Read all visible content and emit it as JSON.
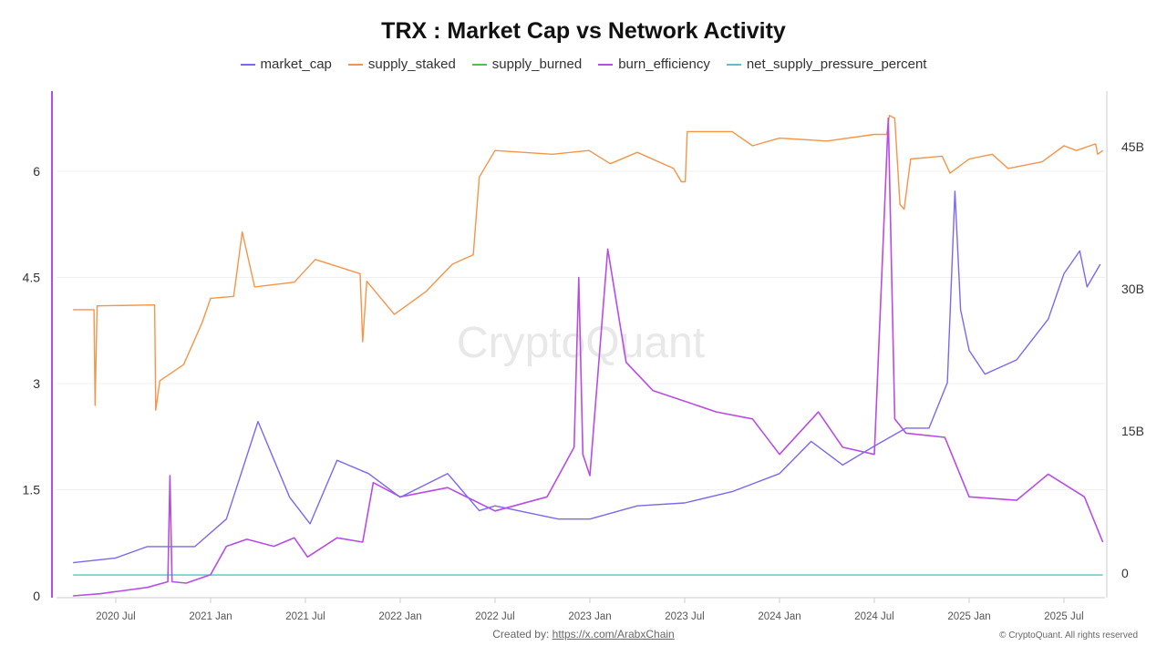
{
  "chart_data": {
    "type": "line",
    "title": "TRX : Market Cap vs Network Activity",
    "legend_position": "top",
    "grid": true,
    "x_ticks": [
      "2020 Jul",
      "2021 Jan",
      "2021 Jul",
      "2022 Jan",
      "2022 Jul",
      "2023 Jan",
      "2023 Jul",
      "2024 Jan",
      "2024 Jul",
      "2025 Jan",
      "2025 Jul"
    ],
    "left_axis": {
      "ticks": [
        "0",
        "1.5",
        "3",
        "4.5",
        "6"
      ],
      "ylim": [
        0,
        7
      ]
    },
    "right_axis": {
      "ticks": [
        "0",
        "15B",
        "30B",
        "45B"
      ],
      "ylim": [
        -2.5,
        50
      ]
    },
    "series": [
      {
        "name": "market_cap",
        "color": "#7b68ee",
        "axis": "right",
        "points": [
          [
            "2020-04-10",
            1.1
          ],
          [
            "2020-07-01",
            1.6
          ],
          [
            "2020-09-01",
            2.8
          ],
          [
            "2020-12-01",
            2.8
          ],
          [
            "2021-02-01",
            5.7
          ],
          [
            "2021-04-01",
            16
          ],
          [
            "2021-05-01",
            12
          ],
          [
            "2021-06-01",
            8
          ],
          [
            "2021-07-10",
            5.2
          ],
          [
            "2021-09-01",
            11.9
          ],
          [
            "2021-11-01",
            10.5
          ],
          [
            "2022-01-01",
            8
          ],
          [
            "2022-04-01",
            10.5
          ],
          [
            "2022-06-01",
            6.6
          ],
          [
            "2022-07-01",
            7.1
          ],
          [
            "2022-11-01",
            5.7
          ],
          [
            "2023-01-01",
            5.7
          ],
          [
            "2023-04-01",
            7.1
          ],
          [
            "2023-07-01",
            7.4
          ],
          [
            "2023-10-01",
            8.6
          ],
          [
            "2024-01-01",
            10.5
          ],
          [
            "2024-03-01",
            13.9
          ],
          [
            "2024-05-01",
            11.4
          ],
          [
            "2024-07-01",
            13.4
          ],
          [
            "2024-09-01",
            15.3
          ],
          [
            "2024-10-15",
            15.3
          ],
          [
            "2024-11-20",
            20.1
          ],
          [
            "2024-12-04",
            40.3
          ],
          [
            "2024-12-15",
            27.8
          ],
          [
            "2025-01-01",
            23.5
          ],
          [
            "2025-02-01",
            21
          ],
          [
            "2025-04-01",
            22.5
          ],
          [
            "2025-06-01",
            26.8
          ],
          [
            "2025-07-01",
            31.6
          ],
          [
            "2025-08-01",
            34
          ],
          [
            "2025-08-15",
            30.2
          ],
          [
            "2025-09-10",
            32.6
          ]
        ]
      },
      {
        "name": "supply_staked",
        "color": "#f4954a",
        "axis": "right",
        "points": [
          [
            "2020-04-10",
            27.8
          ],
          [
            "2020-05-20",
            27.8
          ],
          [
            "2020-05-22",
            17.7
          ],
          [
            "2020-05-26",
            28.2
          ],
          [
            "2020-09-15",
            28.3
          ],
          [
            "2020-09-17",
            17.2
          ],
          [
            "2020-09-25",
            20.3
          ],
          [
            "2020-11-10",
            22
          ],
          [
            "2020-12-15",
            26.4
          ],
          [
            "2021-01-01",
            29
          ],
          [
            "2021-02-15",
            29.2
          ],
          [
            "2021-03-01",
            36
          ],
          [
            "2021-03-25",
            30.2
          ],
          [
            "2021-06-10",
            30.7
          ],
          [
            "2021-07-20",
            33.1
          ],
          [
            "2021-10-15",
            31.6
          ],
          [
            "2021-10-20",
            24.4
          ],
          [
            "2021-10-28",
            30.8
          ],
          [
            "2021-12-20",
            27.3
          ],
          [
            "2022-02-20",
            29.7
          ],
          [
            "2022-04-10",
            32.6
          ],
          [
            "2022-05-20",
            33.6
          ],
          [
            "2022-06-01",
            41.8
          ],
          [
            "2022-07-01",
            44.6
          ],
          [
            "2022-10-20",
            44.2
          ],
          [
            "2022-12-30",
            44.6
          ],
          [
            "2023-02-10",
            43.2
          ],
          [
            "2023-04-01",
            44.4
          ],
          [
            "2023-06-10",
            42.7
          ],
          [
            "2023-06-25",
            41.3
          ],
          [
            "2023-07-02",
            41.3
          ],
          [
            "2023-07-06",
            46.6
          ],
          [
            "2023-10-01",
            46.6
          ],
          [
            "2023-11-10",
            45.1
          ],
          [
            "2024-01-01",
            45.9
          ],
          [
            "2024-04-01",
            45.6
          ],
          [
            "2024-07-01",
            46.3
          ],
          [
            "2024-07-25",
            46.3
          ],
          [
            "2024-07-30",
            48.3
          ],
          [
            "2024-08-10",
            48
          ],
          [
            "2024-08-20",
            38.9
          ],
          [
            "2024-08-28",
            38.4
          ],
          [
            "2024-09-10",
            43.7
          ],
          [
            "2024-11-10",
            44
          ],
          [
            "2024-11-25",
            42.2
          ],
          [
            "2025-01-01",
            43.7
          ],
          [
            "2025-02-15",
            44.2
          ],
          [
            "2025-03-15",
            42.7
          ],
          [
            "2025-05-20",
            43.4
          ],
          [
            "2025-07-01",
            45.1
          ],
          [
            "2025-07-25",
            44.6
          ],
          [
            "2025-09-01",
            45.3
          ],
          [
            "2025-09-05",
            44.2
          ],
          [
            "2025-09-15",
            44.6
          ]
        ]
      },
      {
        "name": "supply_burned",
        "color": "#5cb85c",
        "axis": "right",
        "points": []
      },
      {
        "name": "burn_efficiency",
        "color": "#b84ce6",
        "axis": "left",
        "points": [
          [
            "2020-04-10",
            0
          ],
          [
            "2020-06-01",
            0.03
          ],
          [
            "2020-09-01",
            0.12
          ],
          [
            "2020-10-10",
            0.2
          ],
          [
            "2020-10-14",
            1.7
          ],
          [
            "2020-10-18",
            0.2
          ],
          [
            "2020-11-15",
            0.18
          ],
          [
            "2021-01-01",
            0.3
          ],
          [
            "2021-02-01",
            0.7
          ],
          [
            "2021-03-10",
            0.8
          ],
          [
            "2021-05-01",
            0.7
          ],
          [
            "2021-06-10",
            0.82
          ],
          [
            "2021-07-05",
            0.55
          ],
          [
            "2021-09-01",
            0.82
          ],
          [
            "2021-10-20",
            0.76
          ],
          [
            "2021-11-10",
            1.6
          ],
          [
            "2022-01-01",
            1.4
          ],
          [
            "2022-04-01",
            1.53
          ],
          [
            "2022-07-01",
            1.2
          ],
          [
            "2022-10-10",
            1.4
          ],
          [
            "2022-12-01",
            2.1
          ],
          [
            "2022-12-10",
            4.5
          ],
          [
            "2022-12-18",
            2.0
          ],
          [
            "2023-01-01",
            1.7
          ],
          [
            "2023-02-05",
            4.9
          ],
          [
            "2023-03-10",
            3.3
          ],
          [
            "2023-05-01",
            2.9
          ],
          [
            "2023-07-01",
            2.75
          ],
          [
            "2023-09-01",
            2.6
          ],
          [
            "2023-11-10",
            2.5
          ],
          [
            "2024-01-01",
            2.0
          ],
          [
            "2024-03-15",
            2.6
          ],
          [
            "2024-05-01",
            2.1
          ],
          [
            "2024-07-01",
            2.0
          ],
          [
            "2024-07-28",
            6.75
          ],
          [
            "2024-08-10",
            2.5
          ],
          [
            "2024-09-01",
            2.3
          ],
          [
            "2024-11-15",
            2.24
          ],
          [
            "2025-01-01",
            1.4
          ],
          [
            "2025-04-01",
            1.35
          ],
          [
            "2025-06-01",
            1.72
          ],
          [
            "2025-08-10",
            1.4
          ],
          [
            "2025-09-15",
            0.76
          ]
        ]
      },
      {
        "name": "net_supply_pressure_percent",
        "color": "#5bc0c8",
        "axis": "right",
        "points": [
          [
            "2020-04-10",
            -0.2
          ],
          [
            "2025-09-15",
            -0.2
          ]
        ]
      }
    ]
  },
  "watermark": "CryptoQuant",
  "footer": {
    "created_by": "Created by:",
    "link": "https://x.com/ArabxChain",
    "copyright": "© CryptoQuant. All rights reserved"
  }
}
